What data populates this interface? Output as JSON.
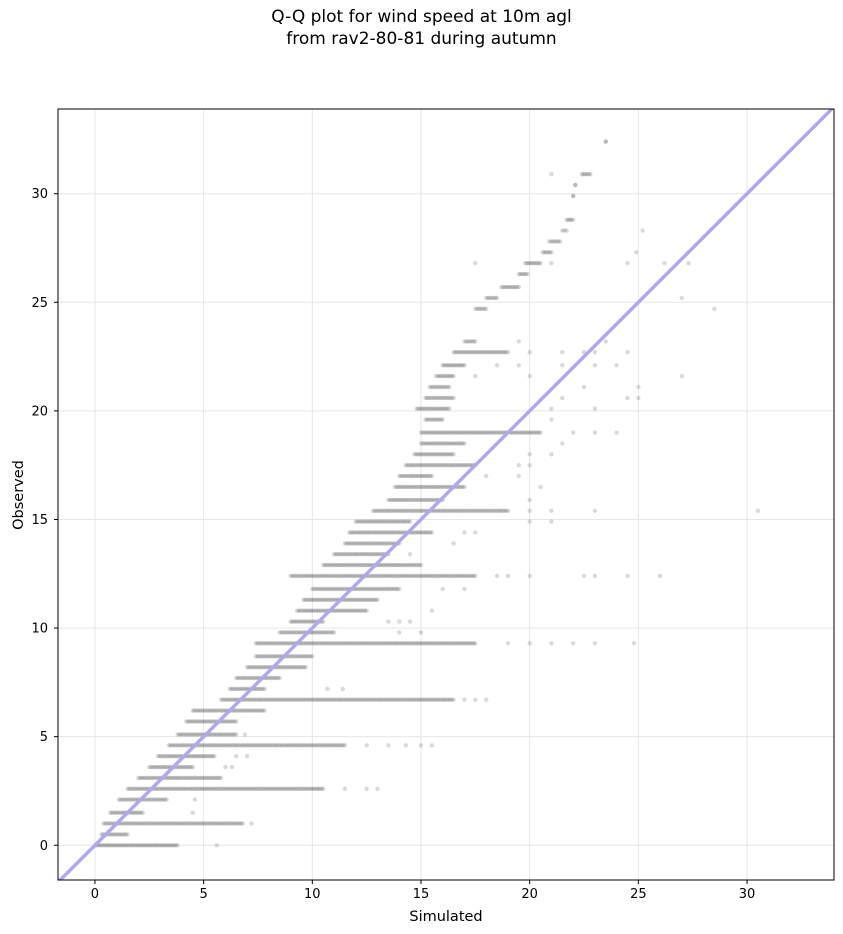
{
  "chart_data": {
    "type": "scatter",
    "title_line1": "Q-Q plot for wind speed at 10m agl",
    "title_line2": "from rav2-80-81 during autumn",
    "xlabel": "Simulated",
    "ylabel": "Observed",
    "xlim": [
      -1.7,
      34.0
    ],
    "ylim": [
      -1.6,
      33.9
    ],
    "xticks": [
      "0",
      "5",
      "10",
      "15",
      "20",
      "25",
      "30"
    ],
    "yticks": [
      "0",
      "5",
      "10",
      "15",
      "20",
      "25",
      "30"
    ],
    "grid": true,
    "reference_line": {
      "from": [
        -1.7,
        -1.7
      ],
      "to": [
        34.0,
        34.0
      ],
      "color": "#aaaaf0"
    },
    "point_color": "#000000",
    "point_alpha": 0.15,
    "rows": [
      {
        "y": 0.0,
        "dense": [
          0.0,
          3.8
        ],
        "sparse": [
          5.6
        ]
      },
      {
        "y": 0.5,
        "dense": [
          0.3,
          1.5
        ],
        "sparse": []
      },
      {
        "y": 1.0,
        "dense": [
          0.4,
          6.8
        ],
        "sparse": [
          7.2
        ]
      },
      {
        "y": 1.5,
        "dense": [
          0.7,
          2.2
        ],
        "sparse": [
          4.5
        ]
      },
      {
        "y": 2.1,
        "dense": [
          1.1,
          3.3
        ],
        "sparse": [
          4.6
        ]
      },
      {
        "y": 2.6,
        "dense": [
          1.5,
          10.5
        ],
        "sparse": [
          11.5,
          12.5,
          13.0
        ]
      },
      {
        "y": 3.1,
        "dense": [
          2.0,
          5.8
        ],
        "sparse": []
      },
      {
        "y": 3.6,
        "dense": [
          2.5,
          4.5
        ],
        "sparse": [
          6.0,
          6.3
        ]
      },
      {
        "y": 4.1,
        "dense": [
          2.9,
          5.5
        ],
        "sparse": [
          6.5,
          7.0
        ]
      },
      {
        "y": 4.6,
        "dense": [
          3.4,
          11.5
        ],
        "sparse": [
          12.5,
          13.5,
          14.3,
          15.0,
          15.5
        ]
      },
      {
        "y": 5.1,
        "dense": [
          3.8,
          6.5
        ],
        "sparse": [
          6.9
        ]
      },
      {
        "y": 5.7,
        "dense": [
          4.2,
          6.5
        ],
        "sparse": []
      },
      {
        "y": 6.2,
        "dense": [
          4.5,
          7.8
        ],
        "sparse": []
      },
      {
        "y": 6.7,
        "dense": [
          5.8,
          16.5
        ],
        "sparse": [
          17.0,
          17.5,
          18.0
        ]
      },
      {
        "y": 7.2,
        "dense": [
          6.2,
          7.8
        ],
        "sparse": [
          10.7,
          11.4
        ]
      },
      {
        "y": 7.7,
        "dense": [
          6.5,
          8.5
        ],
        "sparse": []
      },
      {
        "y": 8.2,
        "dense": [
          7.0,
          9.7
        ],
        "sparse": []
      },
      {
        "y": 8.7,
        "dense": [
          7.4,
          10.0
        ],
        "sparse": []
      },
      {
        "y": 9.3,
        "dense": [
          7.4,
          17.5
        ],
        "sparse": [
          19.0,
          20.0,
          21.0,
          22.0,
          23.0,
          24.8
        ]
      },
      {
        "y": 9.8,
        "dense": [
          8.5,
          11.0
        ],
        "sparse": [
          14.0,
          15.0
        ]
      },
      {
        "y": 10.3,
        "dense": [
          9.0,
          10.5
        ],
        "sparse": [
          13.5,
          14.0,
          14.5
        ]
      },
      {
        "y": 10.8,
        "dense": [
          9.3,
          12.5
        ],
        "sparse": [
          15.5
        ]
      },
      {
        "y": 11.3,
        "dense": [
          9.6,
          13.0
        ],
        "sparse": []
      },
      {
        "y": 11.8,
        "dense": [
          10.0,
          14.0
        ],
        "sparse": [
          16.0,
          17.0
        ]
      },
      {
        "y": 12.4,
        "dense": [
          9.0,
          17.5
        ],
        "sparse": [
          18.5,
          19.0,
          20.0,
          22.5,
          23.0,
          24.5,
          26.0
        ]
      },
      {
        "y": 12.9,
        "dense": [
          10.5,
          15.0
        ],
        "sparse": []
      },
      {
        "y": 13.4,
        "dense": [
          11.0,
          13.5
        ],
        "sparse": [
          14.5
        ]
      },
      {
        "y": 13.9,
        "dense": [
          11.5,
          14.0
        ],
        "sparse": [
          16.5
        ]
      },
      {
        "y": 14.4,
        "dense": [
          11.7,
          15.5
        ],
        "sparse": [
          17.0,
          17.5
        ]
      },
      {
        "y": 14.9,
        "dense": [
          12.0,
          14.5
        ],
        "sparse": [
          20.0,
          21.0
        ]
      },
      {
        "y": 15.4,
        "dense": [
          12.8,
          19.0
        ],
        "sparse": [
          20.0,
          21.0,
          23.0,
          30.5
        ]
      },
      {
        "y": 15.9,
        "dense": [
          13.5,
          16.0
        ],
        "sparse": [
          20.0
        ]
      },
      {
        "y": 16.5,
        "dense": [
          13.8,
          17.0
        ],
        "sparse": [
          20.5
        ]
      },
      {
        "y": 17.0,
        "dense": [
          14.0,
          15.5
        ],
        "sparse": [
          18.0,
          19.5
        ]
      },
      {
        "y": 17.5,
        "dense": [
          14.3,
          17.5
        ],
        "sparse": [
          19.5,
          20.0
        ]
      },
      {
        "y": 18.0,
        "dense": [
          14.7,
          16.5
        ],
        "sparse": [
          20.0,
          21.0
        ]
      },
      {
        "y": 18.5,
        "dense": [
          15.0,
          17.0
        ],
        "sparse": [
          21.5
        ]
      },
      {
        "y": 19.0,
        "dense": [
          15.0,
          20.5
        ],
        "sparse": [
          22.0,
          23.0,
          24.0
        ]
      },
      {
        "y": 19.6,
        "dense": [
          15.2,
          16.0
        ],
        "sparse": [
          21.0
        ]
      },
      {
        "y": 20.1,
        "dense": [
          14.8,
          16.3
        ],
        "sparse": [
          21.0,
          23.0
        ]
      },
      {
        "y": 20.6,
        "dense": [
          15.2,
          16.5
        ],
        "sparse": [
          21.5,
          24.5,
          25.0
        ]
      },
      {
        "y": 21.1,
        "dense": [
          15.4,
          16.3
        ],
        "sparse": [
          22.5,
          25.0
        ]
      },
      {
        "y": 21.6,
        "dense": [
          15.7,
          16.5
        ],
        "sparse": [
          17.5,
          20.0,
          27.0
        ]
      },
      {
        "y": 22.1,
        "dense": [
          16.0,
          17.0
        ],
        "sparse": [
          18.5,
          19.5,
          21.5,
          23.0,
          24.0
        ]
      },
      {
        "y": 22.7,
        "dense": [
          16.5,
          19.0
        ],
        "sparse": [
          20.0,
          21.5,
          22.5,
          23.0,
          24.5
        ]
      },
      {
        "y": 23.2,
        "dense": [
          17.0,
          17.5
        ],
        "sparse": [
          19.5,
          23.5
        ]
      },
      {
        "y": 24.7,
        "dense": [
          17.5,
          18.0
        ],
        "sparse": [
          28.5
        ]
      },
      {
        "y": 25.2,
        "dense": [
          18.0,
          18.5
        ],
        "sparse": [
          27.0
        ]
      },
      {
        "y": 25.7,
        "dense": [
          18.7,
          19.5
        ],
        "sparse": []
      },
      {
        "y": 26.3,
        "dense": [
          19.5,
          19.9
        ],
        "sparse": []
      },
      {
        "y": 26.8,
        "dense": [
          19.8,
          20.5
        ],
        "sparse": [
          17.5,
          21.0,
          24.5,
          26.2,
          27.3
        ]
      },
      {
        "y": 27.3,
        "dense": [
          20.6,
          21.0
        ],
        "sparse": [
          24.9
        ]
      },
      {
        "y": 27.8,
        "dense": [
          20.9,
          21.4
        ],
        "sparse": []
      },
      {
        "y": 28.3,
        "dense": [
          21.5,
          21.7
        ],
        "sparse": [
          25.2
        ]
      },
      {
        "y": 28.8,
        "dense": [
          21.7,
          22.0
        ],
        "sparse": []
      },
      {
        "y": 29.9,
        "dense": [
          22.0,
          22.0
        ],
        "sparse": []
      },
      {
        "y": 30.4,
        "dense": [
          22.1,
          22.1
        ],
        "sparse": []
      },
      {
        "y": 30.9,
        "dense": [
          22.4,
          22.8
        ],
        "sparse": [
          21.0
        ]
      },
      {
        "y": 32.4,
        "dense": [
          23.5,
          23.5
        ],
        "sparse": []
      }
    ]
  }
}
